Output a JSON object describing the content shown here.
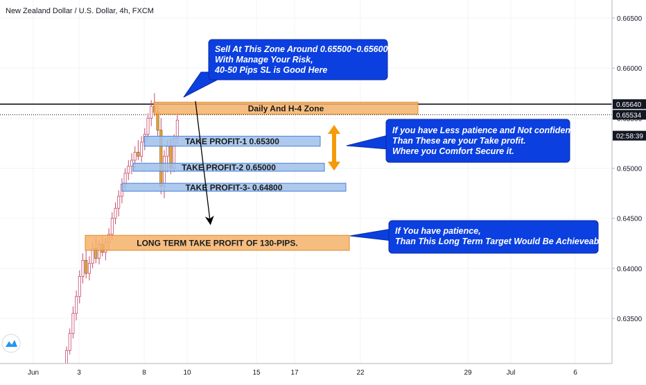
{
  "header": {
    "title": "New Zealand Dollar / U.S. Dollar, 4h, FXCM"
  },
  "chart_data": {
    "type": "candlestick",
    "y_axis": {
      "range": [
        0.6305,
        0.6668
      ],
      "ticks": [
        "0.66500",
        "0.66000",
        "0.65500",
        "0.65000",
        "0.64500",
        "0.64000",
        "0.63500"
      ],
      "price_tags": [
        {
          "label": "0.65640",
          "value": 0.6564,
          "style": "dark"
        },
        {
          "label": "0.65534",
          "value": 0.65534,
          "style": "dark"
        },
        {
          "label": "02:58:39",
          "value": 0.65325,
          "style": "dark"
        }
      ]
    },
    "x_axis": {
      "ticks": [
        "Jun",
        "3",
        "8",
        "10",
        "15",
        "17",
        "22",
        "29",
        "Jul",
        "6"
      ]
    },
    "horizontal_lines": [
      {
        "value": 0.6564,
        "style": "solid"
      },
      {
        "value": 0.65534,
        "style": "dotted"
      }
    ],
    "zones": [
      {
        "label": "Daily And H-4 Zone",
        "top": 0.6566,
        "bottom": 0.6554,
        "color": "#f5b26b"
      },
      {
        "label": "TAKE PROFIT-1 0.65300",
        "top": 0.6532,
        "bottom": 0.6522,
        "color": "#9fbfea"
      },
      {
        "label": "TAKE PROFIT-2 0.65000",
        "top": 0.6505,
        "bottom": 0.6497,
        "color": "#9fbfea"
      },
      {
        "label": "TAKE PROFIT-3- 0.64800",
        "top": 0.6485,
        "bottom": 0.6477,
        "color": "#9fbfea"
      },
      {
        "label": "LONG TERM TAKE PROFIT OF 130-PIPS.",
        "top": 0.6433,
        "bottom": 0.6418,
        "color": "#f5b26b"
      }
    ],
    "callouts": [
      {
        "lines": [
          "Sell At This Zone Around 0.65500~0.65600.",
          "With Manage Your Risk,",
          "40-50 Pips SL is Good Here"
        ]
      },
      {
        "lines": [
          "If you have Less patience and Not confident.",
          "Than These are your Take profit.",
          "Where you Comfort Secure it."
        ]
      },
      {
        "lines": [
          "If You have patience,",
          "Than This Long Term Target Would Be Achieveable."
        ]
      }
    ],
    "candles": [
      {
        "o": 0.6305,
        "h": 0.6322,
        "l": 0.6301,
        "c": 0.6318
      },
      {
        "o": 0.6318,
        "h": 0.634,
        "l": 0.6314,
        "c": 0.6335
      },
      {
        "o": 0.6335,
        "h": 0.6362,
        "l": 0.633,
        "c": 0.6355
      },
      {
        "o": 0.6355,
        "h": 0.6378,
        "l": 0.6348,
        "c": 0.6372
      },
      {
        "o": 0.6372,
        "h": 0.6398,
        "l": 0.6365,
        "c": 0.6392
      },
      {
        "o": 0.6392,
        "h": 0.6415,
        "l": 0.6385,
        "c": 0.6408
      },
      {
        "o": 0.6408,
        "h": 0.6418,
        "l": 0.639,
        "c": 0.6395
      },
      {
        "o": 0.6395,
        "h": 0.6412,
        "l": 0.6388,
        "c": 0.6405
      },
      {
        "o": 0.6405,
        "h": 0.6426,
        "l": 0.64,
        "c": 0.642
      },
      {
        "o": 0.642,
        "h": 0.643,
        "l": 0.6405,
        "c": 0.641
      },
      {
        "o": 0.641,
        "h": 0.6428,
        "l": 0.6404,
        "c": 0.6424
      },
      {
        "o": 0.6424,
        "h": 0.6432,
        "l": 0.6412,
        "c": 0.6416
      },
      {
        "o": 0.6416,
        "h": 0.643,
        "l": 0.6408,
        "c": 0.6426
      },
      {
        "o": 0.6426,
        "h": 0.644,
        "l": 0.6418,
        "c": 0.6434
      },
      {
        "o": 0.6434,
        "h": 0.6456,
        "l": 0.6428,
        "c": 0.645
      },
      {
        "o": 0.645,
        "h": 0.6466,
        "l": 0.6444,
        "c": 0.646
      },
      {
        "o": 0.646,
        "h": 0.6478,
        "l": 0.6452,
        "c": 0.6472
      },
      {
        "o": 0.6472,
        "h": 0.649,
        "l": 0.6465,
        "c": 0.6484
      },
      {
        "o": 0.6484,
        "h": 0.65,
        "l": 0.6478,
        "c": 0.6495
      },
      {
        "o": 0.6495,
        "h": 0.6508,
        "l": 0.6488,
        "c": 0.6502
      },
      {
        "o": 0.6502,
        "h": 0.6515,
        "l": 0.6494,
        "c": 0.6508
      },
      {
        "o": 0.6508,
        "h": 0.6522,
        "l": 0.65,
        "c": 0.6516
      },
      {
        "o": 0.6516,
        "h": 0.6528,
        "l": 0.6508,
        "c": 0.6512
      },
      {
        "o": 0.6512,
        "h": 0.6532,
        "l": 0.6506,
        "c": 0.6526
      },
      {
        "o": 0.6526,
        "h": 0.654,
        "l": 0.6518,
        "c": 0.6534
      },
      {
        "o": 0.6534,
        "h": 0.6555,
        "l": 0.6528,
        "c": 0.655
      },
      {
        "o": 0.655,
        "h": 0.6568,
        "l": 0.6542,
        "c": 0.6562
      },
      {
        "o": 0.6562,
        "h": 0.6575,
        "l": 0.6552,
        "c": 0.6556
      },
      {
        "o": 0.6556,
        "h": 0.6566,
        "l": 0.6532,
        "c": 0.6538
      },
      {
        "o": 0.6538,
        "h": 0.655,
        "l": 0.6474,
        "c": 0.6482
      },
      {
        "o": 0.6482,
        "h": 0.6518,
        "l": 0.647,
        "c": 0.6512
      },
      {
        "o": 0.6512,
        "h": 0.6528,
        "l": 0.6496,
        "c": 0.6522
      },
      {
        "o": 0.6522,
        "h": 0.653,
        "l": 0.6494,
        "c": 0.65
      },
      {
        "o": 0.65,
        "h": 0.6534,
        "l": 0.6496,
        "c": 0.653
      },
      {
        "o": 0.653,
        "h": 0.6555,
        "l": 0.6524,
        "c": 0.6548
      }
    ]
  }
}
